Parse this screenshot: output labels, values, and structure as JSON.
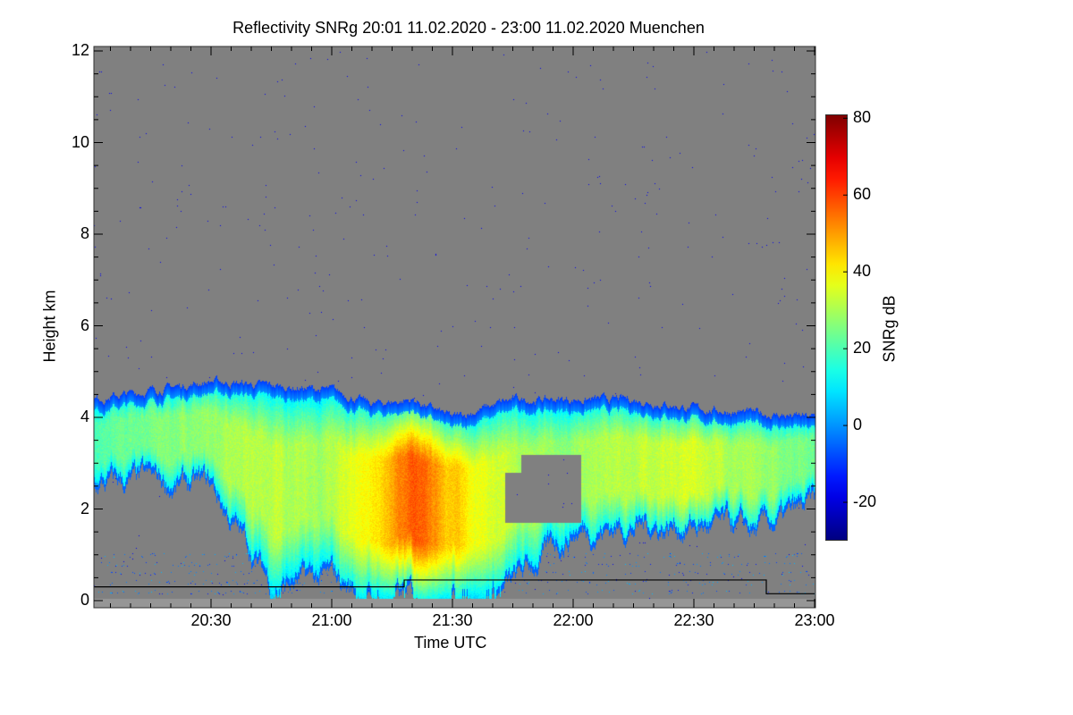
{
  "chart_data": {
    "type": "heatmap",
    "title": "Reflectivity SNRg   20:01 11.02.2020 - 23:00 11.02.2020 Muenchen",
    "xlabel": "Time UTC",
    "ylabel": "Height km",
    "colorbar_label": "SNRg dB",
    "xlim": [
      "20:01",
      "23:00"
    ],
    "ylim": [
      0,
      12
    ],
    "x_ticks": [
      "20:30",
      "21:00",
      "21:30",
      "22:00",
      "22:30",
      "23:00"
    ],
    "y_ticks": [
      "0",
      "2",
      "4",
      "6",
      "8",
      "10",
      "12"
    ],
    "colorbar_ticks": [
      "-20",
      "0",
      "20",
      "40",
      "60",
      "80"
    ],
    "colorbar_range": [
      -30,
      81
    ],
    "colormap": "jet",
    "no_data_color": "#808080",
    "cloud_profile": {
      "time_min_after_20": [
        1,
        15,
        30,
        45,
        60,
        70,
        80,
        90,
        105,
        120,
        135,
        150,
        165,
        180
      ],
      "top_km": [
        4.4,
        4.6,
        4.8,
        4.7,
        4.6,
        4.3,
        4.4,
        4.0,
        4.4,
        4.4,
        4.4,
        4.2,
        4.1,
        4.0
      ],
      "base_km": [
        2.5,
        2.5,
        2.4,
        0.3,
        0.4,
        0.0,
        0.0,
        0.0,
        0.3,
        1.5,
        1.6,
        1.6,
        1.4,
        2.0
      ],
      "peak_snr_db": [
        20,
        25,
        28,
        32,
        30,
        40,
        58,
        45,
        30,
        28,
        32,
        35,
        28,
        25
      ]
    },
    "black_line": {
      "time_min_after_20": [
        1,
        78,
        78,
        168,
        168,
        180
      ],
      "height_km": [
        0.3,
        0.3,
        0.45,
        0.45,
        0.15,
        0.15
      ]
    }
  }
}
